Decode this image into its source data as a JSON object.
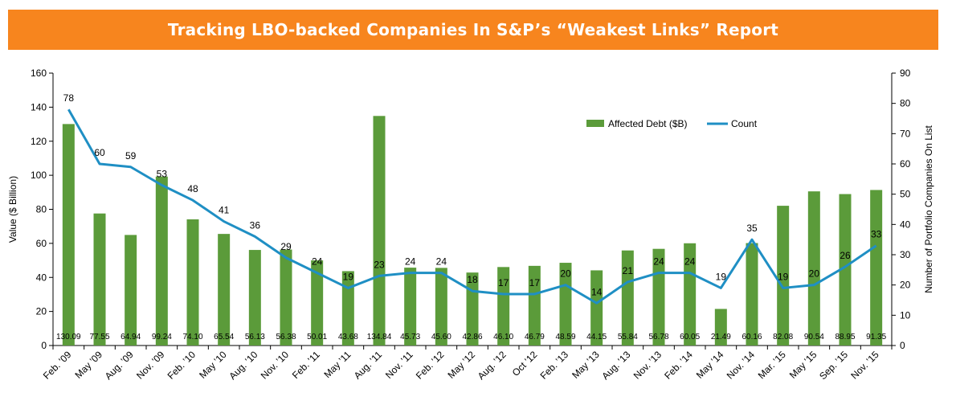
{
  "header": {
    "title": "Tracking LBO-backed Companies In S&P’s “Weakest Links” Report"
  },
  "colors": {
    "banner": "#f7851e",
    "bars": "#5b9b3a",
    "line": "#1f8fc4"
  },
  "chart_data": {
    "type": "bar",
    "combo": "bar+line",
    "title": "Tracking LBO-backed Companies In S&P’s “Weakest Links” Report",
    "ylabel": "Value ($ Billion)",
    "y2label": "Number of Portfolio Companies On List",
    "ylim": [
      0,
      160
    ],
    "y2lim": [
      0,
      90
    ],
    "yticks": [
      "0",
      "20",
      "40",
      "60",
      "80",
      "100",
      "120",
      "140",
      "160"
    ],
    "y2ticks": [
      "0",
      "10",
      "20",
      "30",
      "40",
      "50",
      "60",
      "70",
      "80",
      "90"
    ],
    "categories": [
      "Feb. ’09",
      "May ’09",
      "Aug. ’09",
      "Nov. ’09",
      "Feb. ’10",
      "May ’10",
      "Aug. ’10",
      "Nov. ’10",
      "Feb. ’11",
      "May ’11",
      "Aug. ’11",
      "Nov. ’11",
      "Feb. ’12",
      "May ’12",
      "Aug. ’12",
      "Oct ’12",
      "Feb. ’13",
      "May ’13",
      "Aug. ’13",
      "Nov. ’13",
      "Feb. ’14",
      "May ’14",
      "Nov. ’14",
      "Mar. ’15",
      "May ’15",
      "Sep. ’15",
      "Nov. ’15"
    ],
    "series": [
      {
        "name": "Affected Debt ($B)",
        "axis": "left",
        "kind": "bar",
        "values": [
          130.09,
          77.55,
          64.94,
          99.24,
          74.1,
          65.54,
          56.13,
          56.38,
          50.01,
          43.68,
          134.84,
          45.73,
          45.6,
          42.86,
          46.1,
          46.79,
          48.59,
          44.15,
          55.84,
          56.78,
          60.05,
          21.49,
          60.16,
          82.08,
          90.54,
          88.95,
          91.35
        ],
        "labels": [
          "130.09",
          "77.55",
          "64.94",
          "99.24",
          "74.10",
          "65.54",
          "56.13",
          "56.38",
          "50.01",
          "43.68",
          "134.84",
          "45.73",
          "45.60",
          "42.86",
          "46.10",
          "46.79",
          "48.59",
          "44.15",
          "55.84",
          "56.78",
          "60.05",
          "21.49",
          "60.16",
          "82.08",
          "90.54",
          "88.95",
          "91.35"
        ]
      },
      {
        "name": "Count",
        "axis": "right",
        "kind": "line",
        "values": [
          78,
          60,
          59,
          53,
          48,
          41,
          36,
          29,
          24,
          19,
          23,
          24,
          24,
          18,
          17,
          17,
          20,
          14,
          21,
          24,
          24,
          19,
          35,
          19,
          20,
          26,
          33
        ]
      }
    ],
    "legend": "top-right"
  }
}
